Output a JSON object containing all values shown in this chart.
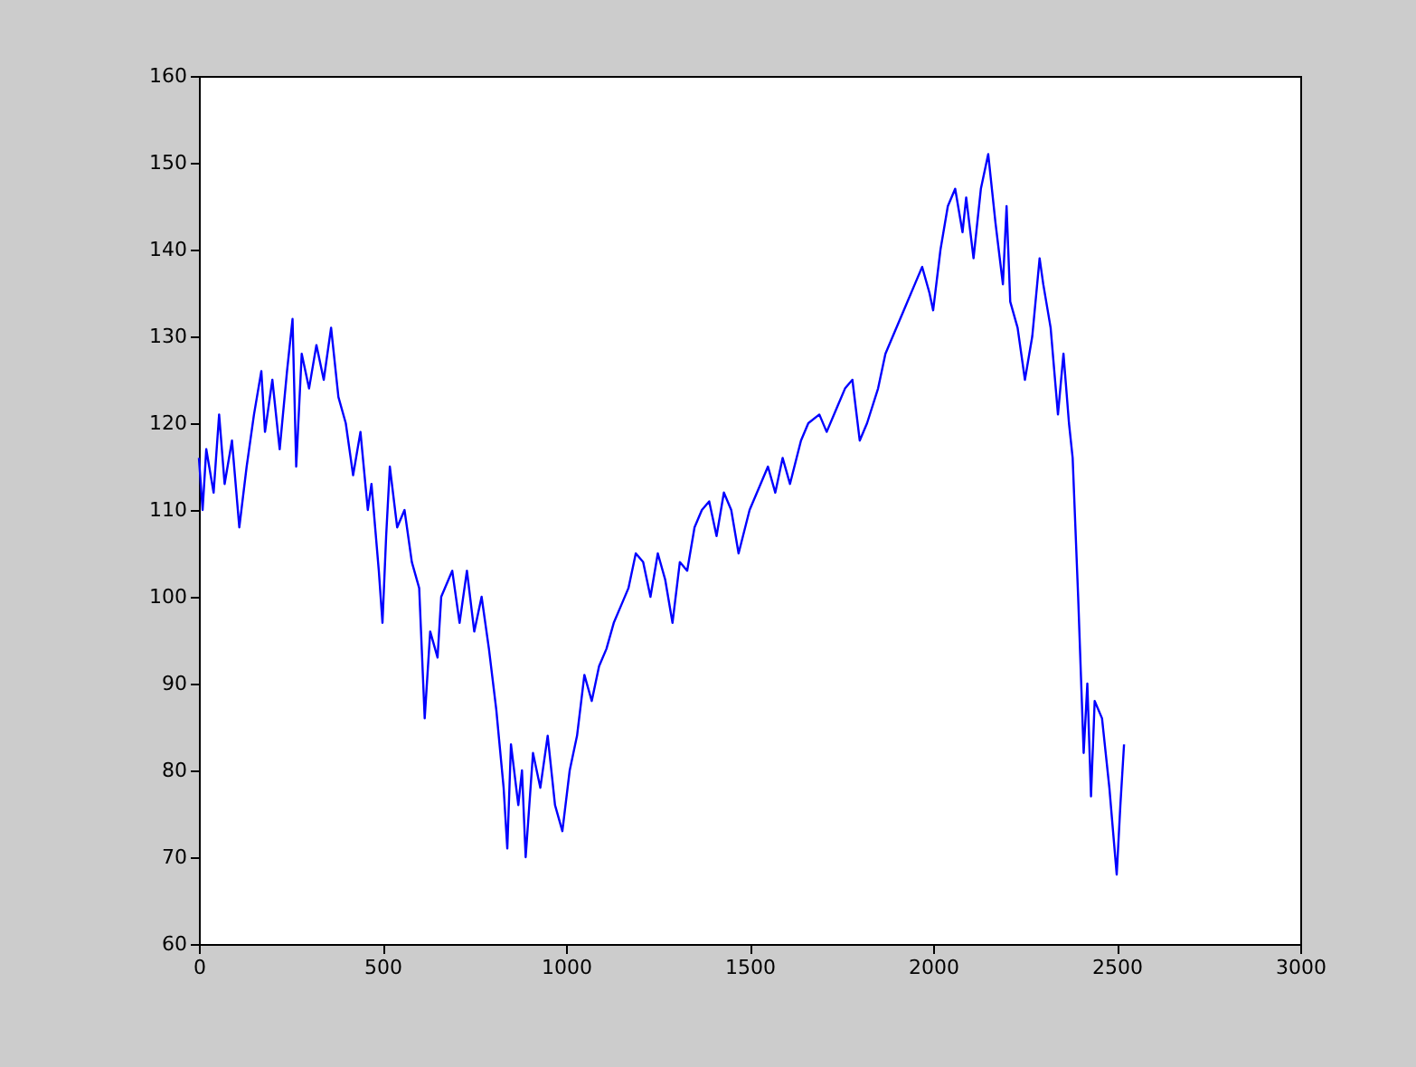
{
  "chart_data": {
    "type": "line",
    "xlim": [
      0,
      3000
    ],
    "ylim": [
      60,
      160
    ],
    "xticks": [
      0,
      500,
      1000,
      1500,
      2000,
      2500,
      3000
    ],
    "yticks": [
      60,
      70,
      80,
      90,
      100,
      110,
      120,
      130,
      140,
      150,
      160
    ],
    "grid": false,
    "marker": "none",
    "line_style": "solid",
    "series": [
      {
        "color": "#0000ff",
        "x": [
          0,
          10,
          20,
          40,
          55,
          70,
          90,
          110,
          130,
          150,
          170,
          180,
          200,
          220,
          240,
          255,
          265,
          280,
          300,
          320,
          340,
          360,
          380,
          400,
          420,
          440,
          460,
          470,
          490,
          500,
          510,
          520,
          540,
          560,
          580,
          600,
          615,
          630,
          650,
          660,
          690,
          710,
          730,
          750,
          770,
          790,
          810,
          830,
          840,
          850,
          870,
          880,
          890,
          910,
          930,
          950,
          970,
          990,
          1010,
          1030,
          1050,
          1070,
          1090,
          1110,
          1130,
          1150,
          1170,
          1190,
          1210,
          1230,
          1250,
          1270,
          1290,
          1310,
          1330,
          1350,
          1370,
          1390,
          1410,
          1430,
          1450,
          1470,
          1500,
          1530,
          1550,
          1570,
          1590,
          1610,
          1640,
          1660,
          1690,
          1710,
          1740,
          1760,
          1780,
          1800,
          1820,
          1850,
          1870,
          1890,
          1920,
          1950,
          1970,
          1990,
          2000,
          2020,
          2040,
          2060,
          2080,
          2090,
          2110,
          2130,
          2150,
          2170,
          2190,
          2200,
          2210,
          2230,
          2250,
          2270,
          2290,
          2300,
          2320,
          2340,
          2355,
          2370,
          2380,
          2395,
          2410,
          2420,
          2430,
          2440,
          2460,
          2480,
          2500,
          2510,
          2520
        ],
        "values": [
          116,
          110,
          117,
          112,
          121,
          113,
          118,
          108,
          115,
          121,
          126,
          119,
          125,
          117,
          126,
          132,
          115,
          128,
          124,
          129,
          125,
          131,
          123,
          120,
          114,
          119,
          110,
          113,
          103,
          97,
          107,
          115,
          108,
          110,
          104,
          101,
          86,
          96,
          93,
          100,
          103,
          97,
          103,
          96,
          100,
          94,
          87,
          78,
          71,
          83,
          76,
          80,
          70,
          82,
          78,
          84,
          76,
          73,
          80,
          84,
          91,
          88,
          92,
          94,
          97,
          99,
          101,
          105,
          104,
          100,
          105,
          102,
          97,
          104,
          103,
          108,
          110,
          111,
          107,
          112,
          110,
          105,
          110,
          113,
          115,
          112,
          116,
          113,
          118,
          120,
          121,
          119,
          122,
          124,
          125,
          118,
          120,
          124,
          128,
          130,
          133,
          136,
          138,
          135,
          133,
          140,
          145,
          147,
          142,
          146,
          139,
          147,
          151,
          143,
          136,
          145,
          134,
          131,
          125,
          130,
          139,
          136,
          131,
          121,
          128,
          120,
          116,
          100,
          82,
          90,
          77,
          88,
          86,
          78,
          68,
          76,
          83
        ]
      }
    ]
  }
}
